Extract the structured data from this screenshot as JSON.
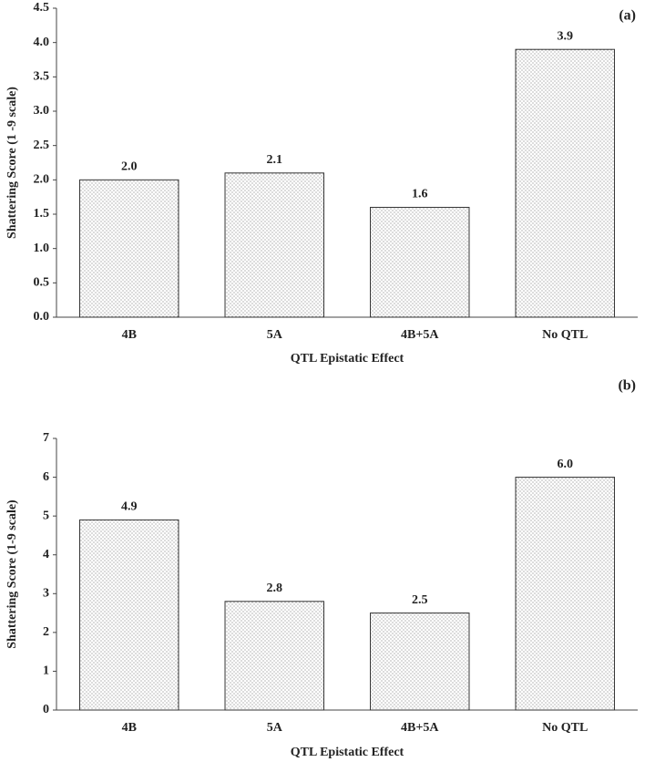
{
  "chart_data": [
    {
      "type": "bar",
      "panel_label": "(a)",
      "x_label": "QTL Epistatic Effect",
      "y_label": "Shattering Score (1 -9 scale)",
      "categories": [
        "4B",
        "5A",
        "4B+5A",
        "No QTL"
      ],
      "values": [
        2.0,
        2.1,
        1.6,
        3.9
      ],
      "value_labels": [
        "2.0",
        "2.1",
        "1.6",
        "3.9"
      ],
      "ylim": [
        0,
        4.5
      ],
      "yticks": [
        {
          "value": 0,
          "label": "0.0"
        },
        {
          "value": 0.5,
          "label": "0.5"
        },
        {
          "value": 1,
          "label": "1.0"
        },
        {
          "value": 1.5,
          "label": "1.5"
        },
        {
          "value": 2,
          "label": "2.0"
        },
        {
          "value": 2.5,
          "label": "2.5"
        },
        {
          "value": 3,
          "label": "3.0"
        },
        {
          "value": 3.5,
          "label": "3.5"
        },
        {
          "value": 4,
          "label": "4.0"
        },
        {
          "value": 4.5,
          "label": "4.5"
        }
      ]
    },
    {
      "type": "bar",
      "panel_label": "(b)",
      "x_label": "QTL Epistatic Effect",
      "y_label": "Shattering Score (1-9 scale)",
      "categories": [
        "4B",
        "5A",
        "4B+5A",
        "No QTL"
      ],
      "values": [
        4.9,
        2.8,
        2.5,
        6.0
      ],
      "value_labels": [
        "4.9",
        "2.8",
        "2.5",
        "6.0"
      ],
      "ylim": [
        0,
        7
      ],
      "yticks": [
        0,
        1,
        2,
        3,
        4,
        5,
        6,
        7
      ]
    }
  ]
}
